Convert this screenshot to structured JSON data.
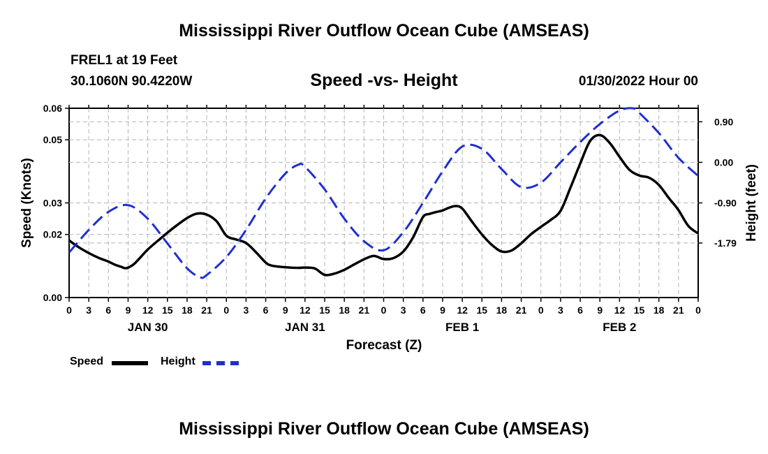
{
  "page": {
    "title": "Mississippi River Outflow Ocean Cube (AMSEAS)",
    "footer_title": "Mississippi River Outflow Ocean Cube (AMSEAS)",
    "station": "FREL1 at 19 Feet",
    "coords": "30.1060N  90.4220W",
    "subtitle": "Speed -vs- Height",
    "datestamp": "01/30/2022 Hour 00"
  },
  "legend": {
    "speed_label": "Speed",
    "height_label": "Height"
  },
  "chart_data": {
    "type": "line",
    "xlabel": "Forecast (Z)",
    "ylabel": "Speed (Knots)",
    "y2label": "Height (feet)",
    "xlim": [
      0,
      96
    ],
    "ylim": [
      0,
      0.06
    ],
    "y2lim": [
      -3.0,
      1.2
    ],
    "grid": true,
    "x_ticks": [
      0,
      3,
      6,
      9,
      12,
      15,
      18,
      21,
      24,
      27,
      30,
      33,
      36,
      39,
      42,
      45,
      48,
      51,
      54,
      57,
      60,
      63,
      66,
      69,
      72,
      75,
      78,
      81,
      84,
      87,
      90,
      93,
      96
    ],
    "x_tick_labels": [
      "0",
      "3",
      "6",
      "9",
      "12",
      "15",
      "18",
      "21",
      "0",
      "3",
      "6",
      "9",
      "12",
      "15",
      "18",
      "21",
      "0",
      "3",
      "6",
      "9",
      "12",
      "15",
      "18",
      "21",
      "0",
      "3",
      "6",
      "9",
      "12",
      "15",
      "18",
      "21",
      "0"
    ],
    "day_labels": [
      {
        "x": 12,
        "label": "JAN 30"
      },
      {
        "x": 36,
        "label": "JAN 31"
      },
      {
        "x": 60,
        "label": "FEB 1"
      },
      {
        "x": 84,
        "label": "FEB 2"
      }
    ],
    "y_ticks": [
      0,
      0.02,
      0.03,
      0.05,
      0.06
    ],
    "y_tick_labels": [
      "0.00",
      "0.02",
      "0.03",
      "0.05",
      "0.06"
    ],
    "y2_ticks": [
      -1.79,
      -0.9,
      0.0,
      0.9
    ],
    "y2_tick_labels": [
      "-1.79",
      "-0.90",
      "0.00",
      "0.90"
    ],
    "series": [
      {
        "name": "Speed",
        "axis": "left",
        "color": "#000000",
        "style": "solid",
        "x": [
          0,
          1.5,
          3,
          4.5,
          6,
          7,
          8,
          8.5,
          9,
          10,
          12,
          14,
          16,
          18,
          19.5,
          21,
          22.5,
          24,
          25.5,
          27,
          28.5,
          30,
          31,
          33,
          35,
          36,
          37.5,
          39,
          40.5,
          42,
          43.5,
          45,
          46.5,
          48,
          49.5,
          51,
          52.5,
          54,
          55,
          56,
          57,
          58,
          59,
          60,
          61.5,
          63,
          64.5,
          66,
          67.5,
          69,
          70.5,
          72,
          73.5,
          75,
          76.5,
          78,
          79.5,
          81,
          82.5,
          84,
          85.5,
          87,
          88.5,
          90,
          91.5,
          93,
          94.5,
          96
        ],
        "values": [
          0.0181,
          0.0159,
          0.0141,
          0.0126,
          0.0114,
          0.0104,
          0.0097,
          0.0093,
          0.0095,
          0.0108,
          0.0152,
          0.0188,
          0.0222,
          0.0252,
          0.0266,
          0.0263,
          0.0242,
          0.0196,
          0.0184,
          0.0173,
          0.0144,
          0.0111,
          0.0101,
          0.0096,
          0.0094,
          0.0095,
          0.0092,
          0.0072,
          0.0076,
          0.0088,
          0.0105,
          0.0121,
          0.0132,
          0.0122,
          0.0125,
          0.0146,
          0.0191,
          0.0255,
          0.0265,
          0.0271,
          0.0276,
          0.0285,
          0.029,
          0.0282,
          0.024,
          0.02,
          0.0167,
          0.0146,
          0.0149,
          0.0172,
          0.0201,
          0.0224,
          0.0246,
          0.0275,
          0.0348,
          0.0425,
          0.0496,
          0.0515,
          0.049,
          0.0446,
          0.0405,
          0.0387,
          0.038,
          0.0357,
          0.0316,
          0.0277,
          0.0227,
          0.0203
        ]
      },
      {
        "name": "Height",
        "axis": "right",
        "color": "#1f2fcf",
        "style": "dashed",
        "x": [
          0,
          3,
          6,
          9,
          12,
          15,
          18,
          20,
          21,
          24,
          27,
          30,
          33,
          35,
          36,
          39,
          42,
          45,
          48,
          51,
          54,
          57,
          60,
          63,
          66,
          69,
          72,
          75,
          78,
          81,
          84,
          86,
          87,
          90,
          93,
          96
        ],
        "values": [
          -2.0,
          -1.5,
          -1.1,
          -0.95,
          -1.25,
          -1.8,
          -2.35,
          -2.55,
          -2.5,
          -2.1,
          -1.5,
          -0.8,
          -0.25,
          -0.05,
          -0.1,
          -0.6,
          -1.25,
          -1.75,
          -1.95,
          -1.55,
          -0.9,
          -0.2,
          0.35,
          0.3,
          -0.15,
          -0.55,
          -0.45,
          0.0,
          0.45,
          0.85,
          1.15,
          1.2,
          1.1,
          0.65,
          0.1,
          -0.3
        ]
      }
    ]
  }
}
